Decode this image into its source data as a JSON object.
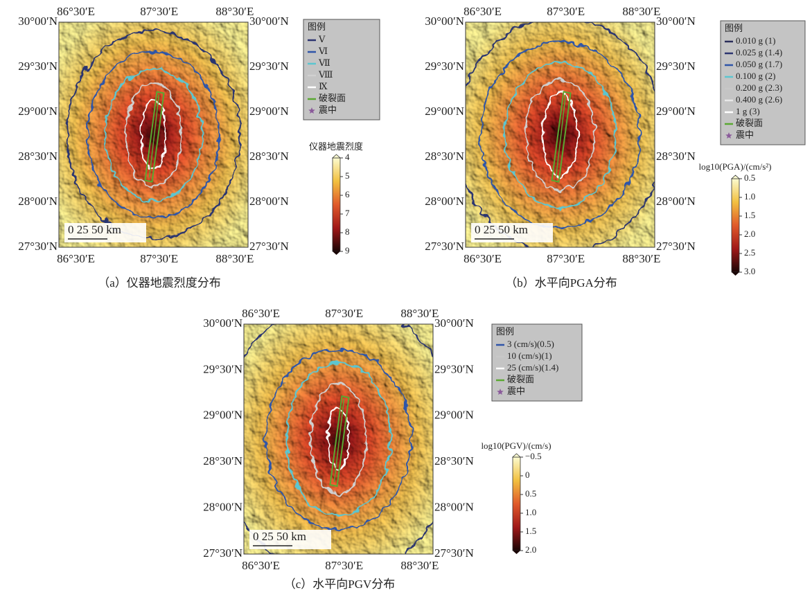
{
  "panels": [
    {
      "xticks": [
        "86°30′E",
        "87°30′E",
        "88°30′E"
      ],
      "yticks": [
        "30°00′N",
        "29°30′N",
        "29°00′N",
        "28°30′N",
        "28°00′N",
        "27°30′N"
      ],
      "scale_bar": "0  25  50 km",
      "legend": {
        "title": "图例",
        "items": [
          {
            "label": "Ⅴ",
            "color": "#2c3470"
          },
          {
            "label": "Ⅵ",
            "color": "#2f54a8"
          },
          {
            "label": "Ⅶ",
            "color": "#5cc6d0"
          },
          {
            "label": "Ⅷ",
            "color": "#d0d0d0"
          },
          {
            "label": "Ⅸ",
            "color": "#ffffff"
          },
          {
            "label": "破裂面",
            "color": "#5aa832"
          },
          {
            "label": "震中",
            "color": "#8a5a9a"
          }
        ]
      },
      "colorbar": {
        "title": "仪器地震烈度",
        "ticks": [
          "4",
          "5",
          "6",
          "7",
          "8",
          "9"
        ]
      },
      "caption": "（a）仪器地震烈度分布"
    },
    {
      "xticks": [
        "86°30′E",
        "87°30′E",
        "88°30′E"
      ],
      "yticks": [
        "30°00′N",
        "29°30′N",
        "29°00′N",
        "28°30′N",
        "28°00′N",
        "27°30′N"
      ],
      "scale_bar": "0  25  50 km",
      "legend": {
        "title": "图例",
        "items": [
          {
            "label": "0.010 g (1)",
            "color": "#2a2e5a"
          },
          {
            "label": "0.025 g (1.4)",
            "color": "#2c3470"
          },
          {
            "label": "0.050 g (1.7)",
            "color": "#2f54a8"
          },
          {
            "label": "0.100 g (2)",
            "color": "#5cc6d0"
          },
          {
            "label": "0.200 g (2.3)",
            "color": "#c8c8c8"
          },
          {
            "label": "0.400 g (2.6)",
            "color": "#e8e8e8"
          },
          {
            "label": "1 g (3)",
            "color": "#ffffff"
          },
          {
            "label": "破裂面",
            "color": "#5aa832"
          },
          {
            "label": "震中",
            "color": "#8a5a9a"
          }
        ]
      },
      "colorbar": {
        "title": "log10(PGA)/(cm/s²)",
        "ticks": [
          "0.5",
          "1.0",
          "1.5",
          "2.0",
          "2.5",
          "3.0"
        ]
      },
      "caption": "（b）水平向PGA分布"
    },
    {
      "xticks": [
        "86°30′E",
        "87°30′E",
        "88°30′E"
      ],
      "yticks": [
        "30°00′N",
        "29°30′N",
        "29°00′N",
        "28°30′N",
        "28°00′N",
        "27°30′N"
      ],
      "scale_bar": "0  25  50 km",
      "legend": {
        "title": "图例",
        "items": [
          {
            "label": "3 (cm/s)(0.5)",
            "color": "#2f54a8"
          },
          {
            "label": "10 (cm/s)(1)",
            "color": "#c8c8c8"
          },
          {
            "label": "25 (cm/s)(1.4)",
            "color": "#ffffff"
          },
          {
            "label": "破裂面",
            "color": "#5aa832"
          },
          {
            "label": "震中",
            "color": "#8a5a9a"
          }
        ]
      },
      "colorbar": {
        "title": "log10(PGV)/(cm/s)",
        "ticks": [
          "−0.5",
          "0",
          "0.5",
          "1.0",
          "1.5",
          "2.0"
        ]
      },
      "caption": "（c）水平向PGV分布"
    }
  ]
}
